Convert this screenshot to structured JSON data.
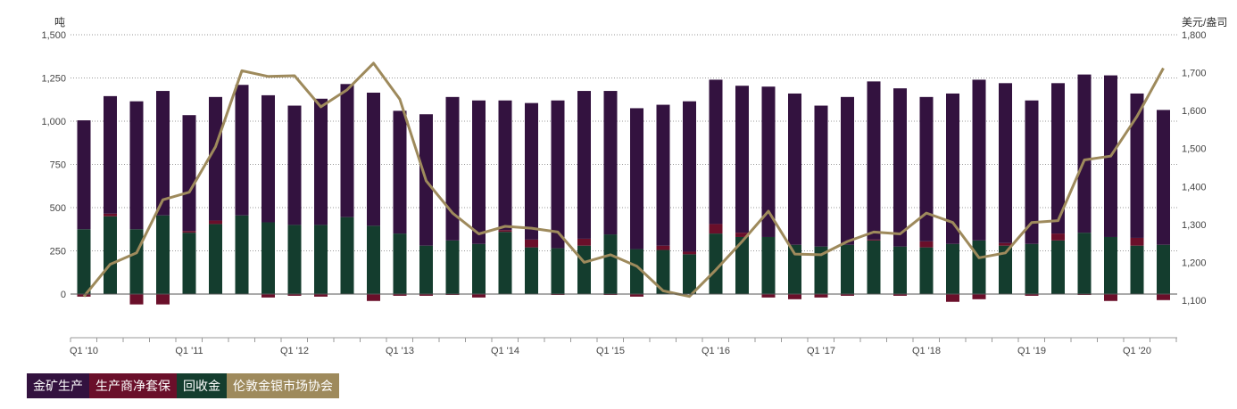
{
  "chart_data": {
    "type": "bar",
    "stacked": true,
    "left_axis": {
      "unit": "吨",
      "ylim": [
        -250,
        1500
      ],
      "ticks": [
        0,
        250,
        500,
        750,
        1000,
        1250,
        1500
      ],
      "tick_labels": [
        "0",
        "250",
        "500",
        "750",
        "1,000",
        "1,250",
        "1,500"
      ]
    },
    "right_axis": {
      "unit": "美元/盎司",
      "ylim": [
        1080,
        1800
      ],
      "ticks": [
        1100,
        1200,
        1300,
        1400,
        1500,
        1600,
        1700,
        1800
      ],
      "tick_labels": [
        "1,100",
        "1,200",
        "1,300",
        "1,400",
        "1,500",
        "1,600",
        "1,700",
        "1,800"
      ]
    },
    "grid": true,
    "legend_position": "bottom-left",
    "categories": [
      "Q1 '10",
      "Q2 '10",
      "Q3 '10",
      "Q4 '10",
      "Q1 '11",
      "Q2 '11",
      "Q3 '11",
      "Q4 '11",
      "Q1 '12",
      "Q2 '12",
      "Q3 '12",
      "Q4 '12",
      "Q1 '13",
      "Q2 '13",
      "Q3 '13",
      "Q4 '13",
      "Q1 '14",
      "Q2 '14",
      "Q3 '14",
      "Q4 '14",
      "Q1 '15",
      "Q2 '15",
      "Q3 '15",
      "Q4 '15",
      "Q1 '16",
      "Q2 '16",
      "Q3 '16",
      "Q4 '16",
      "Q1 '17",
      "Q2 '17",
      "Q3 '17",
      "Q4 '17",
      "Q1 '18",
      "Q2 '18",
      "Q3 '18",
      "Q4 '18",
      "Q1 '19",
      "Q2 '19",
      "Q3 '19",
      "Q4 '19",
      "Q1 '20",
      "Q2 '20"
    ],
    "x_tick_labels": [
      "Q1 '10",
      "Q1 '11",
      "Q1 '12",
      "Q1 '13",
      "Q1 '14",
      "Q1 '15",
      "Q1 '16",
      "Q1 '17",
      "Q1 '18",
      "Q1 '19",
      "Q1 '20"
    ],
    "series": [
      {
        "name": "回收金",
        "axis": "left",
        "color": "#143d2e",
        "values": [
          375,
          450,
          375,
          455,
          355,
          405,
          455,
          415,
          400,
          400,
          445,
          395,
          350,
          280,
          310,
          290,
          360,
          270,
          265,
          280,
          345,
          260,
          255,
          230,
          350,
          330,
          330,
          285,
          275,
          285,
          310,
          275,
          270,
          290,
          310,
          280,
          290,
          310,
          355,
          330,
          280,
          285
        ]
      },
      {
        "name": "生产商净套保",
        "axis": "left",
        "color": "#6a0f2a",
        "values": [
          -15,
          15,
          -60,
          -60,
          10,
          20,
          0,
          -20,
          -10,
          -15,
          0,
          -40,
          -10,
          -10,
          -5,
          -20,
          10,
          45,
          -5,
          40,
          -5,
          -15,
          25,
          15,
          55,
          25,
          -20,
          -30,
          -20,
          -10,
          5,
          -10,
          35,
          -45,
          -30,
          15,
          -10,
          40,
          -5,
          -40,
          45,
          -35
        ]
      },
      {
        "name": "金矿生产",
        "axis": "left",
        "color": "#33123f",
        "values": [
          630,
          680,
          740,
          720,
          670,
          715,
          755,
          735,
          690,
          730,
          770,
          770,
          710,
          760,
          830,
          830,
          750,
          790,
          855,
          855,
          830,
          815,
          815,
          870,
          835,
          850,
          870,
          875,
          815,
          855,
          915,
          915,
          835,
          870,
          930,
          925,
          830,
          870,
          915,
          935,
          835,
          780
        ]
      },
      {
        "name": "伦敦金银市场协会",
        "axis": "right",
        "type": "line",
        "color": "#9e8a5c",
        "values": [
          1110,
          1195,
          1225,
          1365,
          1385,
          1505,
          1705,
          1690,
          1692,
          1610,
          1655,
          1725,
          1630,
          1415,
          1330,
          1275,
          1295,
          1290,
          1280,
          1200,
          1220,
          1190,
          1125,
          1110,
          1180,
          1255,
          1335,
          1222,
          1220,
          1255,
          1280,
          1275,
          1330,
          1305,
          1212,
          1225,
          1305,
          1310,
          1470,
          1480,
          1585,
          1712
        ]
      }
    ]
  }
}
